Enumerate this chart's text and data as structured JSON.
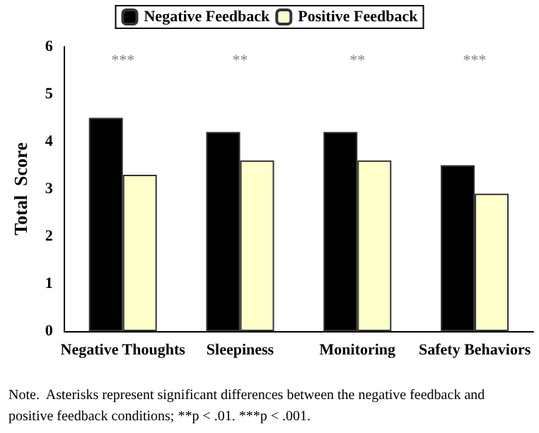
{
  "chart_data": {
    "type": "bar",
    "ylabel": "Total  Score",
    "categories": [
      "Negative Thoughts",
      "Sleepiness",
      "Monitoring",
      "Safety Behaviors"
    ],
    "series": [
      {
        "name": "Negative Feedback",
        "color": "#000000",
        "values": [
          4.5,
          4.2,
          4.2,
          3.5
        ]
      },
      {
        "name": "Positive Feedback",
        "color": "#ffffcc",
        "values": [
          3.3,
          3.6,
          3.6,
          2.9
        ]
      }
    ],
    "ylim": [
      0,
      6
    ],
    "yticks": [
      0,
      1,
      2,
      3,
      4,
      5,
      6
    ],
    "grid": false,
    "legend": "top",
    "annotations": [
      "***",
      "**",
      "**",
      "***",
      "Note.  Asterisks represent significant differences between the negative feedback and positive feedback conditions; **p < .01. ***p < .001."
    ]
  }
}
